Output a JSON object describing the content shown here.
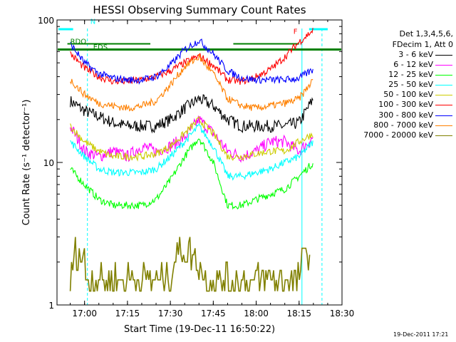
{
  "chart_data": {
    "type": "line",
    "title": "HESSI Observing Summary Count Rates",
    "xlabel": "Start Time (19-Dec-11 16:50:22)",
    "ylabel": "Count Rate (s⁻¹ detector⁻¹)",
    "y_scale": "log",
    "ylim": [
      1,
      100
    ],
    "xlim": [
      "16:50:22",
      "18:30:00"
    ],
    "x_ticks": [
      "17:00",
      "17:15",
      "17:30",
      "17:45",
      "18:00",
      "18:15",
      "18:30"
    ],
    "y_ticks": [
      "1",
      "10",
      "100"
    ],
    "grid": false,
    "legend_position": "right",
    "legend_header": [
      "Det 1,3,4,5,6,",
      "FDecim 1, Att 0"
    ],
    "series": [
      {
        "name": "3 - 6 keV",
        "color": "#000000",
        "x": [
          "16:55",
          "17:00",
          "17:05",
          "17:10",
          "17:15",
          "17:20",
          "17:25",
          "17:30",
          "17:35",
          "17:40",
          "17:45",
          "17:50",
          "17:55",
          "18:00",
          "18:05",
          "18:10",
          "18:15",
          "18:20"
        ],
        "y": [
          27,
          23,
          21,
          19,
          18,
          18,
          18,
          20,
          24,
          28,
          25,
          20,
          18,
          18,
          18,
          18,
          19,
          28
        ]
      },
      {
        "name": "6 - 12 keV",
        "color": "#ff00ff",
        "x": [
          "16:55",
          "17:00",
          "17:05",
          "17:10",
          "17:15",
          "17:20",
          "17:25",
          "17:30",
          "17:35",
          "17:40",
          "17:45",
          "17:50",
          "17:55",
          "18:00",
          "18:05",
          "18:10",
          "18:15",
          "18:20"
        ],
        "y": [
          18,
          12,
          11,
          12,
          11,
          13,
          12,
          13,
          15,
          20,
          16,
          12,
          11,
          12,
          14,
          14,
          12,
          15
        ]
      },
      {
        "name": "12 - 25 keV",
        "color": "#00ff00",
        "x": [
          "16:55",
          "17:00",
          "17:05",
          "17:10",
          "17:15",
          "17:20",
          "17:25",
          "17:30",
          "17:35",
          "17:40",
          "17:45",
          "17:50",
          "17:55",
          "18:00",
          "18:05",
          "18:10",
          "18:15",
          "18:20"
        ],
        "y": [
          9,
          7,
          5.5,
          5,
          5,
          5,
          5.5,
          7.5,
          11,
          15,
          10,
          5,
          5,
          5.5,
          6,
          6.5,
          8,
          10
        ]
      },
      {
        "name": "25 - 50 keV",
        "color": "#00ffff",
        "x": [
          "16:55",
          "17:00",
          "17:05",
          "17:10",
          "17:15",
          "17:20",
          "17:25",
          "17:30",
          "17:35",
          "17:40",
          "17:45",
          "17:50",
          "17:55",
          "18:00",
          "18:05",
          "18:10",
          "18:15",
          "18:20"
        ],
        "y": [
          14,
          11,
          9,
          8.5,
          8.5,
          8.5,
          9,
          11,
          14,
          18,
          13,
          8,
          8,
          8.5,
          9,
          10,
          11,
          14
        ]
      },
      {
        "name": "50 - 100 keV",
        "color": "#cccc00",
        "x": [
          "16:55",
          "17:00",
          "17:05",
          "17:10",
          "17:15",
          "17:20",
          "17:25",
          "17:30",
          "17:35",
          "17:40",
          "17:45",
          "17:50",
          "17:55",
          "18:00",
          "18:05",
          "18:10",
          "18:15",
          "18:20"
        ],
        "y": [
          18,
          14,
          12,
          11,
          11,
          11,
          11.5,
          13,
          16,
          20,
          16,
          11,
          11,
          11.5,
          12,
          12,
          14,
          16
        ]
      },
      {
        "name": "100 - 300 keV",
        "color": "#ff0000",
        "x": [
          "16:55",
          "17:00",
          "17:05",
          "17:10",
          "17:15",
          "17:20",
          "17:25",
          "17:30",
          "17:35",
          "17:40",
          "17:45",
          "17:50",
          "17:55",
          "18:00",
          "18:05",
          "18:10",
          "18:15",
          "18:20"
        ],
        "y": [
          58,
          46,
          40,
          37,
          37,
          38,
          40,
          44,
          50,
          56,
          48,
          38,
          37,
          40,
          45,
          55,
          70,
          85
        ]
      },
      {
        "name": "300 - 800 keV",
        "color": "#0000ff",
        "x": [
          "16:55",
          "17:00",
          "17:05",
          "17:10",
          "17:15",
          "17:20",
          "17:25",
          "17:30",
          "17:35",
          "17:40",
          "17:45",
          "17:50",
          "17:55",
          "18:00",
          "18:05",
          "18:10",
          "18:15",
          "18:20"
        ],
        "y": [
          68,
          50,
          42,
          39,
          38,
          38,
          40,
          48,
          62,
          72,
          58,
          44,
          39,
          38,
          38,
          38,
          39,
          45
        ]
      },
      {
        "name": "800 - 7000 keV",
        "color": "#ff8000",
        "x": [
          "16:55",
          "17:00",
          "17:05",
          "17:10",
          "17:15",
          "17:20",
          "17:25",
          "17:30",
          "17:35",
          "17:40",
          "17:45",
          "17:50",
          "17:55",
          "18:00",
          "18:05",
          "18:10",
          "18:15",
          "18:20"
        ],
        "y": [
          38,
          30,
          26,
          25,
          24,
          25,
          27,
          35,
          47,
          55,
          42,
          28,
          25,
          24,
          25,
          26,
          28,
          38
        ]
      },
      {
        "name": "7000 - 20000 keV",
        "color": "#808000",
        "x": [
          "16:55",
          "16:57",
          "17:00",
          "17:01",
          "17:29",
          "17:32",
          "17:35",
          "17:40",
          "17:42",
          "18:15",
          "18:16",
          "18:19"
        ],
        "y": [
          1.5,
          2.5,
          2.0,
          1.5,
          1.5,
          2.2,
          2.5,
          2.0,
          1.5,
          1.5,
          2.0,
          2.5
        ]
      }
    ],
    "annotations": [
      {
        "text": "N",
        "color": "#00ffff"
      },
      {
        "text": "RDO",
        "color": "#008000"
      },
      {
        "text": "EDS",
        "color": "#008000"
      },
      {
        "text": "F",
        "color": "#ff0000"
      }
    ],
    "timestamp": "19-Dec-2011 17:21"
  }
}
